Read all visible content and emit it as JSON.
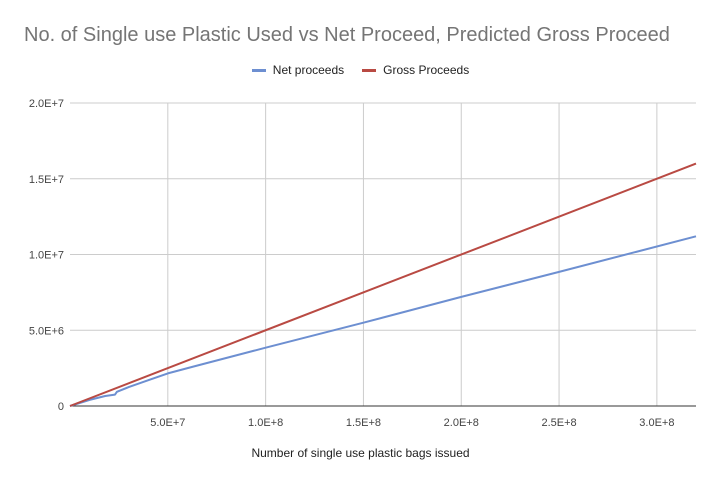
{
  "chart_data": {
    "type": "line",
    "title": "No. of Single use Plastic Used vs Net Proceed, Predicted Gross Proceed",
    "xlabel": "Number of single use plastic bags issued",
    "ylabel": "",
    "xlim": [
      0,
      320000000
    ],
    "ylim": [
      0,
      20000000
    ],
    "x_ticks": [
      50000000,
      100000000,
      150000000,
      200000000,
      250000000,
      300000000
    ],
    "x_tick_labels": [
      "5.0E+7",
      "1.0E+8",
      "1.5E+8",
      "2.0E+8",
      "2.5E+8",
      "3.0E+8"
    ],
    "y_ticks": [
      0,
      5000000,
      10000000,
      15000000,
      20000000
    ],
    "y_tick_labels": [
      "0",
      "5.0E+6",
      "1.0E+7",
      "1.5E+7",
      "2.0E+7"
    ],
    "grid": true,
    "legend_position": "top",
    "series": [
      {
        "name": "Net proceeds",
        "color": "#6d8fd1",
        "points": [
          [
            0,
            0
          ],
          [
            10000000,
            400000
          ],
          [
            18000000,
            660000
          ],
          [
            23000000,
            750000
          ],
          [
            24000000,
            940000
          ],
          [
            30000000,
            1250000
          ],
          [
            40000000,
            1700000
          ],
          [
            50000000,
            2150000
          ],
          [
            63000000,
            2600000
          ],
          [
            100000000,
            3850000
          ],
          [
            150000000,
            5500000
          ],
          [
            200000000,
            7200000
          ],
          [
            250000000,
            8850000
          ],
          [
            320000000,
            11200000
          ]
        ]
      },
      {
        "name": "Gross Proceeds",
        "color": "#b94a43",
        "points": [
          [
            0,
            0
          ],
          [
            320000000,
            16000000
          ]
        ]
      }
    ]
  }
}
